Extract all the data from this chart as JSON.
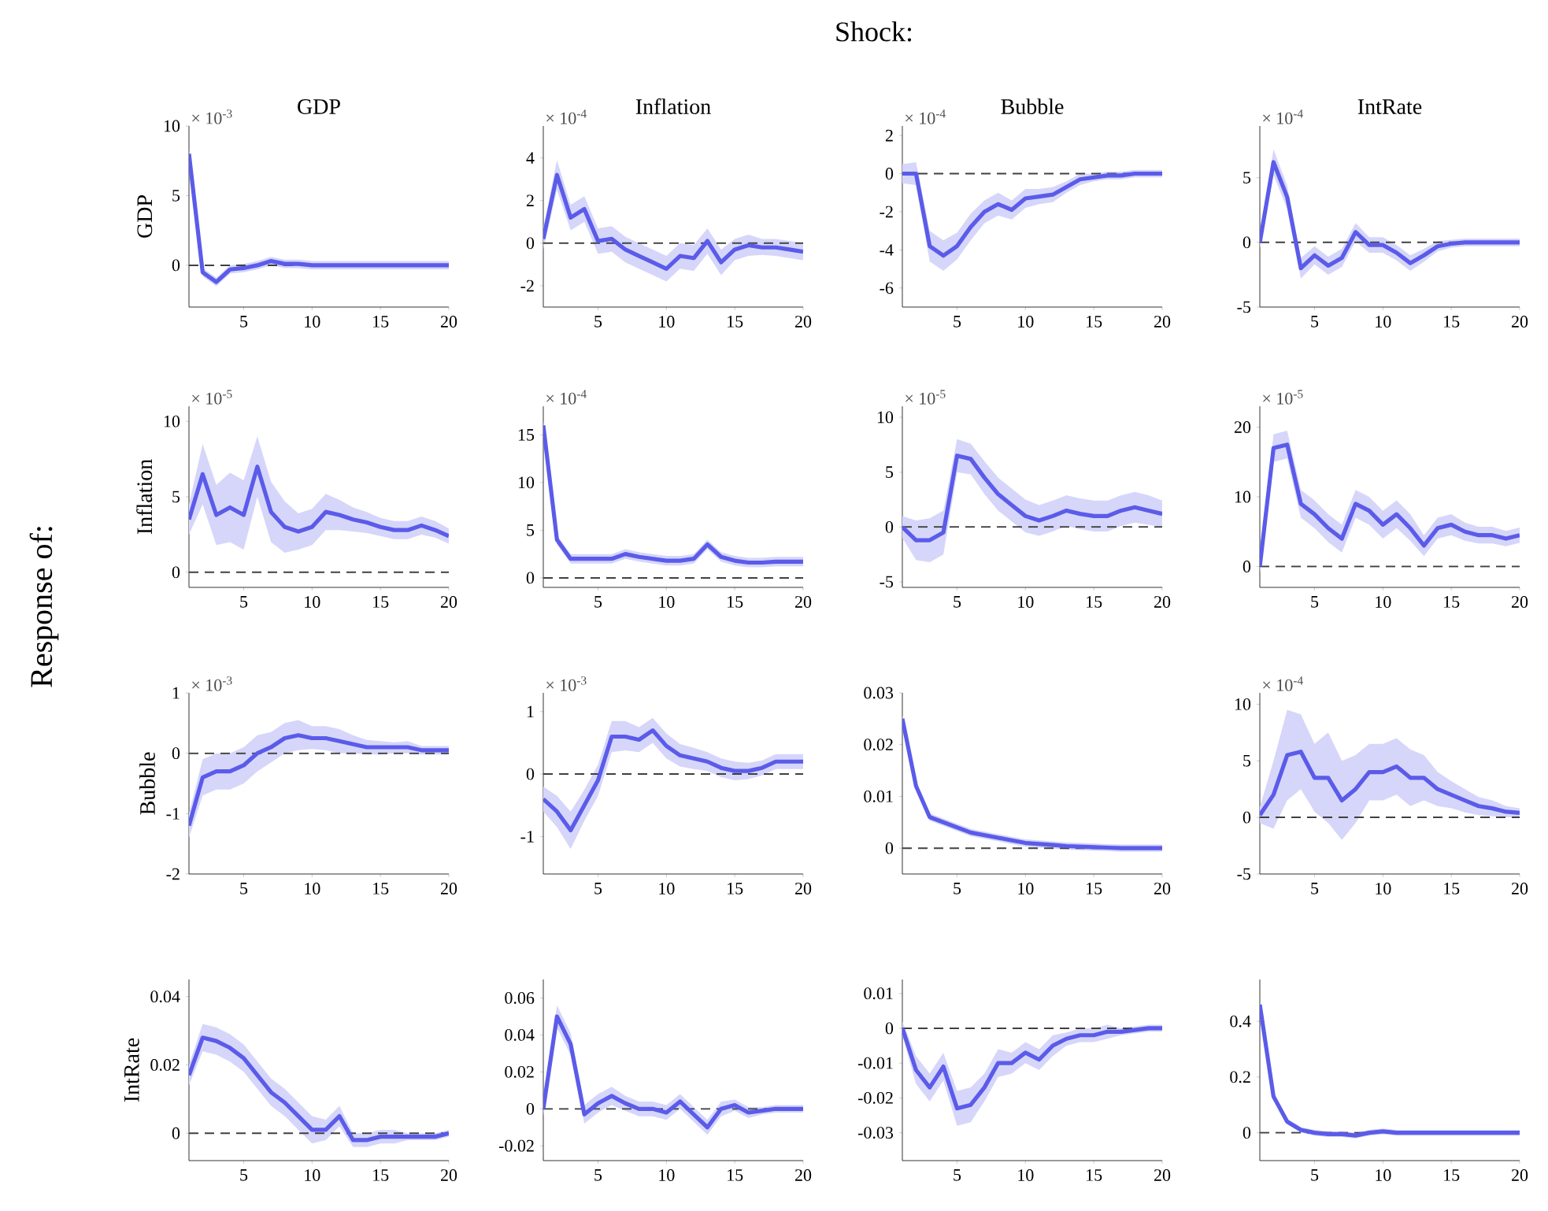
{
  "chart_data": [
    {
      "type": "line",
      "title": "GDP",
      "ylabel": "GDP",
      "annotations": [
        "Shock:",
        "Response of:",
        "× 10$^{-3}$"
      ],
      "x": [
        1,
        2,
        3,
        4,
        5,
        6,
        7,
        8,
        9,
        10,
        11,
        12,
        13,
        14,
        15,
        16,
        17,
        18,
        19,
        20
      ],
      "xlim": [
        1,
        20
      ],
      "xticks": [
        5,
        10,
        15,
        20
      ],
      "ylim": [
        -3,
        10
      ],
      "yticks": [
        0,
        5,
        10
      ],
      "ref_lines": [
        {
          "axis": "y",
          "value": 0
        }
      ],
      "series": [
        {
          "color": "#5b5bea",
          "values": [
            8,
            -0.5,
            -1.2,
            -0.3,
            -0.2,
            0,
            0.3,
            0.1,
            0.1,
            0,
            0,
            0,
            0,
            0,
            0,
            0,
            0,
            0,
            0,
            0
          ],
          "lower": [
            7.7,
            -0.8,
            -1.5,
            -0.6,
            -0.5,
            -0.3,
            0,
            -0.2,
            -0.2,
            -0.3,
            -0.3,
            -0.3,
            -0.3,
            -0.3,
            -0.3,
            -0.3,
            -0.3,
            -0.3,
            -0.3,
            -0.3
          ],
          "upper": [
            8.3,
            -0.2,
            -0.9,
            0,
            0.1,
            0.3,
            0.6,
            0.4,
            0.4,
            0.3,
            0.3,
            0.3,
            0.3,
            0.3,
            0.3,
            0.3,
            0.3,
            0.3,
            0.3,
            0.3
          ]
        }
      ]
    },
    {
      "type": "line",
      "title": "Inflation",
      "annotations": [
        "× 10$^{-4}$"
      ],
      "x": [
        1,
        2,
        3,
        4,
        5,
        6,
        7,
        8,
        9,
        10,
        11,
        12,
        13,
        14,
        15,
        16,
        17,
        18,
        19,
        20
      ],
      "xlim": [
        1,
        20
      ],
      "xticks": [
        5,
        10,
        15,
        20
      ],
      "ylim": [
        -3,
        5.5
      ],
      "yticks": [
        -2,
        0,
        2,
        4
      ],
      "ref_lines": [
        {
          "axis": "y",
          "value": 0
        }
      ],
      "series": [
        {
          "color": "#5b5bea",
          "values": [
            0.2,
            3.2,
            1.2,
            1.6,
            0.1,
            0.2,
            -0.3,
            -0.6,
            -0.9,
            -1.2,
            -0.6,
            -0.7,
            0.1,
            -0.9,
            -0.3,
            -0.1,
            -0.2,
            -0.2,
            -0.3,
            -0.4
          ],
          "lower": [
            -0.3,
            2.5,
            0.6,
            1,
            -0.5,
            -0.4,
            -0.9,
            -1.2,
            -1.5,
            -1.8,
            -1.2,
            -1.3,
            -0.5,
            -1.5,
            -0.8,
            -0.6,
            -0.55,
            -0.6,
            -0.7,
            -0.8
          ],
          "upper": [
            0.7,
            3.9,
            1.8,
            2.2,
            0.7,
            0.8,
            0.3,
            0,
            -0.3,
            -0.6,
            0,
            -0.1,
            0.7,
            -0.3,
            0.2,
            0.4,
            0.2,
            0.2,
            0.1,
            0
          ]
        }
      ]
    },
    {
      "type": "line",
      "title": "Bubble",
      "annotations": [
        "× 10$^{-4}$"
      ],
      "x": [
        1,
        2,
        3,
        4,
        5,
        6,
        7,
        8,
        9,
        10,
        11,
        12,
        13,
        14,
        15,
        16,
        17,
        18,
        19,
        20
      ],
      "xlim": [
        1,
        20
      ],
      "xticks": [
        5,
        10,
        15,
        20
      ],
      "ylim": [
        -7,
        2.5
      ],
      "yticks": [
        -6,
        -4,
        -2,
        0,
        2
      ],
      "ref_lines": [
        {
          "axis": "y",
          "value": 0
        }
      ],
      "series": [
        {
          "color": "#5b5bea",
          "values": [
            0,
            0,
            -3.8,
            -4.3,
            -3.8,
            -2.8,
            -2,
            -1.6,
            -1.9,
            -1.3,
            -1.2,
            -1.1,
            -0.7,
            -0.3,
            -0.2,
            -0.1,
            -0.1,
            0,
            0,
            0
          ],
          "lower": [
            -0.5,
            -0.6,
            -4.6,
            -5.1,
            -4.5,
            -3.5,
            -2.6,
            -2.2,
            -2.4,
            -1.8,
            -1.6,
            -1.5,
            -1,
            -0.6,
            -0.4,
            -0.3,
            -0.3,
            -0.2,
            -0.2,
            -0.2
          ],
          "upper": [
            0.5,
            0.6,
            -3,
            -3.5,
            -3.1,
            -2.1,
            -1.4,
            -1,
            -1.4,
            -0.8,
            -0.8,
            -0.7,
            -0.4,
            0,
            0,
            0.1,
            0.1,
            0.2,
            0.2,
            0.2
          ]
        }
      ]
    },
    {
      "type": "line",
      "title": "IntRate",
      "annotations": [
        "× 10$^{-4}$"
      ],
      "x": [
        1,
        2,
        3,
        4,
        5,
        6,
        7,
        8,
        9,
        10,
        11,
        12,
        13,
        14,
        15,
        16,
        17,
        18,
        19,
        20
      ],
      "xlim": [
        1,
        20
      ],
      "xticks": [
        5,
        10,
        15,
        20
      ],
      "ylim": [
        -5,
        9
      ],
      "yticks": [
        -5,
        0,
        5
      ],
      "ref_lines": [
        {
          "axis": "y",
          "value": 0
        }
      ],
      "series": [
        {
          "color": "#5b5bea",
          "values": [
            0,
            6.2,
            3.5,
            -2,
            -1,
            -1.8,
            -1.2,
            0.8,
            -0.2,
            -0.2,
            -0.8,
            -1.6,
            -1,
            -0.3,
            -0.1,
            0,
            0,
            0,
            0,
            0
          ],
          "lower": [
            -0.5,
            5.2,
            2.6,
            -2.8,
            -1.7,
            -2.5,
            -1.9,
            0.1,
            -0.8,
            -0.8,
            -1.4,
            -2.2,
            -1.5,
            -0.7,
            -0.4,
            -0.3,
            -0.3,
            -0.3,
            -0.3,
            -0.3
          ],
          "upper": [
            0.5,
            7.2,
            4.4,
            -1.2,
            -0.3,
            -1.1,
            -0.5,
            1.5,
            0.4,
            0.4,
            -0.2,
            -1,
            -0.5,
            0.1,
            0.2,
            0.3,
            0.3,
            0.3,
            0.3,
            0.3
          ]
        }
      ]
    },
    {
      "type": "line",
      "ylabel": "Inflation",
      "annotations": [
        "× 10$^{-5}$"
      ],
      "x": [
        1,
        2,
        3,
        4,
        5,
        6,
        7,
        8,
        9,
        10,
        11,
        12,
        13,
        14,
        15,
        16,
        17,
        18,
        19,
        20
      ],
      "xlim": [
        1,
        20
      ],
      "xticks": [
        5,
        10,
        15,
        20
      ],
      "ylim": [
        -1,
        11
      ],
      "yticks": [
        0,
        5,
        10
      ],
      "ref_lines": [
        {
          "axis": "y",
          "value": 0
        }
      ],
      "series": [
        {
          "color": "#5b5bea",
          "values": [
            3.5,
            6.5,
            3.8,
            4.3,
            3.8,
            7,
            4,
            3,
            2.7,
            3,
            4,
            3.8,
            3.5,
            3.3,
            3,
            2.8,
            2.8,
            3.1,
            2.8,
            2.4
          ],
          "lower": [
            2.5,
            4.5,
            1.8,
            2,
            1.5,
            5,
            2,
            1.3,
            1.5,
            1.8,
            2.8,
            2.8,
            2.7,
            2.6,
            2.4,
            2.2,
            2.2,
            2.5,
            2.3,
            1.9
          ],
          "upper": [
            4.5,
            8.5,
            5.8,
            6.6,
            6.1,
            9,
            6,
            4.7,
            3.9,
            4.2,
            5.2,
            4.8,
            4.3,
            4,
            3.6,
            3.4,
            3.4,
            3.7,
            3.4,
            2.9
          ]
        }
      ]
    },
    {
      "type": "line",
      "annotations": [
        "× 10$^{-4}$"
      ],
      "x": [
        1,
        2,
        3,
        4,
        5,
        6,
        7,
        8,
        9,
        10,
        11,
        12,
        13,
        14,
        15,
        16,
        17,
        18,
        19,
        20
      ],
      "xlim": [
        1,
        20
      ],
      "xticks": [
        5,
        10,
        15,
        20
      ],
      "ylim": [
        -1,
        18
      ],
      "yticks": [
        0,
        5,
        10,
        15
      ],
      "ref_lines": [
        {
          "axis": "y",
          "value": 0
        }
      ],
      "series": [
        {
          "color": "#5b5bea",
          "values": [
            16,
            4,
            2,
            2,
            2,
            2,
            2.5,
            2.2,
            2,
            1.8,
            1.8,
            2,
            3.5,
            2.2,
            1.8,
            1.6,
            1.6,
            1.7,
            1.7,
            1.7
          ],
          "lower": [
            15.5,
            3.5,
            1.5,
            1.5,
            1.5,
            1.5,
            2,
            1.7,
            1.5,
            1.3,
            1.3,
            1.5,
            3,
            1.7,
            1.3,
            1.1,
            1.1,
            1.2,
            1.2,
            1.2
          ],
          "upper": [
            16.5,
            4.5,
            2.5,
            2.5,
            2.5,
            2.5,
            3,
            2.7,
            2.5,
            2.3,
            2.3,
            2.5,
            4,
            2.7,
            2.3,
            2.1,
            2.1,
            2.2,
            2.2,
            2.2
          ]
        }
      ]
    },
    {
      "type": "line",
      "annotations": [
        "× 10$^{-5}$"
      ],
      "x": [
        1,
        2,
        3,
        4,
        5,
        6,
        7,
        8,
        9,
        10,
        11,
        12,
        13,
        14,
        15,
        16,
        17,
        18,
        19,
        20
      ],
      "xlim": [
        1,
        20
      ],
      "xticks": [
        5,
        10,
        15,
        20
      ],
      "ylim": [
        -5.5,
        11
      ],
      "yticks": [
        -5,
        0,
        5,
        10
      ],
      "ref_lines": [
        {
          "axis": "y",
          "value": 0
        }
      ],
      "series": [
        {
          "color": "#5b5bea",
          "values": [
            0,
            -1.2,
            -1.2,
            -0.5,
            6.5,
            6.2,
            4.5,
            3,
            2,
            1,
            0.6,
            1,
            1.5,
            1.2,
            1,
            1,
            1.5,
            1.8,
            1.5,
            1.2
          ],
          "lower": [
            -1,
            -3,
            -3.2,
            -2.5,
            5,
            4.8,
            3,
            1.5,
            0.5,
            -0.5,
            -0.8,
            -0.4,
            0.1,
            -0.2,
            -0.4,
            -0.4,
            0.1,
            0.4,
            0.2,
            0
          ],
          "upper": [
            1,
            0.6,
            0.8,
            1.5,
            8,
            7.6,
            6,
            4.5,
            3.5,
            2.5,
            2,
            2.4,
            2.9,
            2.6,
            2.4,
            2.4,
            2.9,
            3.2,
            2.9,
            2.4
          ]
        }
      ]
    },
    {
      "type": "line",
      "annotations": [
        "× 10$^{-5}$"
      ],
      "x": [
        1,
        2,
        3,
        4,
        5,
        6,
        7,
        8,
        9,
        10,
        11,
        12,
        13,
        14,
        15,
        16,
        17,
        18,
        19,
        20
      ],
      "xlim": [
        1,
        20
      ],
      "xticks": [
        5,
        10,
        15,
        20
      ],
      "ylim": [
        -3,
        23
      ],
      "yticks": [
        0,
        10,
        20
      ],
      "ref_lines": [
        {
          "axis": "y",
          "value": 0
        }
      ],
      "series": [
        {
          "color": "#5b5bea",
          "values": [
            0,
            17,
            17.5,
            9,
            7.5,
            5.5,
            4,
            9,
            8,
            6,
            7.5,
            5.5,
            3,
            5.5,
            6,
            5,
            4.5,
            4.5,
            4,
            4.5
          ],
          "lower": [
            -1,
            15,
            15.5,
            7,
            5.5,
            3.5,
            2,
            7,
            6,
            4,
            5.5,
            3.7,
            1.5,
            4,
            4.5,
            3.7,
            3.3,
            3.3,
            2.9,
            3.4
          ],
          "upper": [
            1,
            19,
            19.5,
            11,
            9.5,
            7.5,
            6,
            11,
            10,
            8,
            9.5,
            7.5,
            4.5,
            7,
            7.5,
            6.3,
            5.7,
            5.7,
            5.1,
            5.6
          ]
        }
      ]
    },
    {
      "type": "line",
      "ylabel": "Bubble",
      "annotations": [
        "× 10$^{-3}$"
      ],
      "x": [
        1,
        2,
        3,
        4,
        5,
        6,
        7,
        8,
        9,
        10,
        11,
        12,
        13,
        14,
        15,
        16,
        17,
        18,
        19,
        20
      ],
      "xlim": [
        1,
        20
      ],
      "xticks": [
        5,
        10,
        15,
        20
      ],
      "ylim": [
        -2,
        1
      ],
      "yticks": [
        -2,
        -1,
        0,
        1
      ],
      "ref_lines": [
        {
          "axis": "y",
          "value": 0
        }
      ],
      "series": [
        {
          "color": "#5b5bea",
          "values": [
            -1.2,
            -0.4,
            -0.3,
            -0.3,
            -0.2,
            0,
            0.1,
            0.25,
            0.3,
            0.25,
            0.25,
            0.2,
            0.15,
            0.1,
            0.1,
            0.1,
            0.1,
            0.05,
            0.05,
            0.05
          ],
          "lower": [
            -1.4,
            -0.7,
            -0.6,
            -0.6,
            -0.5,
            -0.3,
            -0.15,
            0,
            0.05,
            0.07,
            0.05,
            0,
            0,
            -0.02,
            -0.02,
            0,
            0,
            -0.02,
            -0.02,
            -0.02
          ],
          "upper": [
            -1,
            -0.1,
            0,
            0,
            0.1,
            0.3,
            0.35,
            0.5,
            0.55,
            0.45,
            0.45,
            0.4,
            0.3,
            0.22,
            0.2,
            0.18,
            0.2,
            0.12,
            0.12,
            0.12
          ]
        }
      ]
    },
    {
      "type": "line",
      "annotations": [
        "× 10$^{-3}$"
      ],
      "x": [
        1,
        2,
        3,
        4,
        5,
        6,
        7,
        8,
        9,
        10,
        11,
        12,
        13,
        14,
        15,
        16,
        17,
        18,
        19,
        20
      ],
      "xlim": [
        1,
        20
      ],
      "xticks": [
        5,
        10,
        15,
        20
      ],
      "ylim": [
        -1.6,
        1.3
      ],
      "yticks": [
        -1,
        0,
        1
      ],
      "ref_lines": [
        {
          "axis": "y",
          "value": 0
        }
      ],
      "series": [
        {
          "color": "#5b5bea",
          "values": [
            -0.4,
            -0.6,
            -0.9,
            -0.5,
            -0.1,
            0.6,
            0.6,
            0.55,
            0.7,
            0.45,
            0.3,
            0.25,
            0.2,
            0.1,
            0.05,
            0.05,
            0.1,
            0.2,
            0.2,
            0.2
          ],
          "lower": [
            -0.6,
            -0.85,
            -1.2,
            -0.75,
            -0.35,
            0.35,
            0.38,
            0.35,
            0.5,
            0.25,
            0.12,
            0.08,
            0.05,
            -0.05,
            -0.1,
            -0.08,
            -0.02,
            0.08,
            0.08,
            0.08
          ],
          "upper": [
            -0.2,
            -0.35,
            -0.6,
            -0.25,
            0.15,
            0.85,
            0.85,
            0.75,
            0.9,
            0.65,
            0.48,
            0.42,
            0.35,
            0.25,
            0.2,
            0.18,
            0.22,
            0.32,
            0.32,
            0.32
          ]
        }
      ]
    },
    {
      "type": "line",
      "x": [
        1,
        2,
        3,
        4,
        5,
        6,
        7,
        8,
        9,
        10,
        11,
        12,
        13,
        14,
        15,
        16,
        17,
        18,
        19,
        20
      ],
      "xlim": [
        1,
        20
      ],
      "xticks": [
        5,
        10,
        15,
        20
      ],
      "ylim": [
        -0.005,
        0.03
      ],
      "yticks": [
        0,
        0.01,
        0.02,
        0.03
      ],
      "ref_lines": [
        {
          "axis": "y",
          "value": 0
        }
      ],
      "series": [
        {
          "color": "#5b5bea",
          "values": [
            0.025,
            0.012,
            0.006,
            0.005,
            0.004,
            0.003,
            0.0025,
            0.002,
            0.0015,
            0.001,
            0.0008,
            0.0006,
            0.0004,
            0.0003,
            0.0002,
            0.0001,
            0,
            0,
            0,
            0
          ],
          "lower": [
            0.0243,
            0.0113,
            0.0053,
            0.0043,
            0.0033,
            0.0023,
            0.0018,
            0.0013,
            0.0008,
            0.0003,
            0.0001,
            -0.0001,
            -0.0003,
            -0.0004,
            -0.0005,
            -0.0006,
            -0.0007,
            -0.0007,
            -0.0007,
            -0.0007
          ],
          "upper": [
            0.0257,
            0.0127,
            0.0067,
            0.0057,
            0.0047,
            0.0037,
            0.0032,
            0.0027,
            0.0022,
            0.0017,
            0.0015,
            0.0013,
            0.0011,
            0.001,
            0.0009,
            0.0008,
            0.0007,
            0.0007,
            0.0007,
            0.0007
          ]
        }
      ]
    },
    {
      "type": "line",
      "annotations": [
        "× 10$^{-4}$"
      ],
      "x": [
        1,
        2,
        3,
        4,
        5,
        6,
        7,
        8,
        9,
        10,
        11,
        12,
        13,
        14,
        15,
        16,
        17,
        18,
        19,
        20
      ],
      "xlim": [
        1,
        20
      ],
      "xticks": [
        5,
        10,
        15,
        20
      ],
      "ylim": [
        -5,
        11
      ],
      "yticks": [
        -5,
        0,
        5,
        10
      ],
      "ref_lines": [
        {
          "axis": "y",
          "value": 0
        }
      ],
      "series": [
        {
          "color": "#5b5bea",
          "values": [
            0.2,
            2,
            5.5,
            5.8,
            3.5,
            3.5,
            1.5,
            2.5,
            4,
            4,
            4.5,
            3.5,
            3.5,
            2.5,
            2,
            1.5,
            1,
            0.8,
            0.5,
            0.4
          ],
          "lower": [
            -0.5,
            -1,
            1.5,
            2.5,
            0.5,
            -0.5,
            -2,
            -0.5,
            1.5,
            1.5,
            2,
            1,
            1.5,
            1,
            0.8,
            0.45,
            0.2,
            0.1,
            0,
            0
          ],
          "upper": [
            0.9,
            5,
            9.5,
            9.1,
            6.5,
            7.5,
            5,
            5.5,
            6.5,
            6.5,
            7,
            6,
            5.5,
            4,
            3.2,
            2.5,
            1.8,
            1.5,
            1,
            0.8
          ]
        }
      ]
    },
    {
      "type": "line",
      "ylabel": "IntRate",
      "x": [
        1,
        2,
        3,
        4,
        5,
        6,
        7,
        8,
        9,
        10,
        11,
        12,
        13,
        14,
        15,
        16,
        17,
        18,
        19,
        20
      ],
      "xlim": [
        1,
        20
      ],
      "xticks": [
        5,
        10,
        15,
        20
      ],
      "ylim": [
        -0.008,
        0.045
      ],
      "yticks": [
        0,
        0.02,
        0.04
      ],
      "ref_lines": [
        {
          "axis": "y",
          "value": 0
        }
      ],
      "series": [
        {
          "color": "#5b5bea",
          "values": [
            0.017,
            0.028,
            0.027,
            0.025,
            0.022,
            0.017,
            0.012,
            0.009,
            0.005,
            0.001,
            0.001,
            0.005,
            -0.002,
            -0.002,
            -0.001,
            -0.001,
            -0.001,
            -0.001,
            -0.001,
            0
          ],
          "lower": [
            0.014,
            0.024,
            0.023,
            0.021,
            0.018,
            0.013,
            0.008,
            0.005,
            0.001,
            -0.003,
            -0.002,
            0.002,
            -0.004,
            -0.004,
            -0.003,
            -0.003,
            -0.002,
            -0.002,
            -0.002,
            -0.001
          ],
          "upper": [
            0.02,
            0.032,
            0.031,
            0.029,
            0.026,
            0.021,
            0.016,
            0.013,
            0.009,
            0.005,
            0.004,
            0.008,
            0,
            0,
            0.001,
            0.001,
            0,
            0,
            0,
            0.001
          ]
        }
      ]
    },
    {
      "type": "line",
      "x": [
        1,
        2,
        3,
        4,
        5,
        6,
        7,
        8,
        9,
        10,
        11,
        12,
        13,
        14,
        15,
        16,
        17,
        18,
        19,
        20
      ],
      "xlim": [
        1,
        20
      ],
      "xticks": [
        5,
        10,
        15,
        20
      ],
      "ylim": [
        -0.028,
        0.07
      ],
      "yticks": [
        -0.02,
        0,
        0.02,
        0.04,
        0.06
      ],
      "ref_lines": [
        {
          "axis": "y",
          "value": 0
        }
      ],
      "series": [
        {
          "color": "#5b5bea",
          "values": [
            0,
            0.05,
            0.035,
            -0.003,
            0.003,
            0.007,
            0.003,
            0,
            0,
            -0.002,
            0.004,
            -0.003,
            -0.01,
            0,
            0.002,
            -0.002,
            -0.001,
            0,
            0,
            0
          ],
          "lower": [
            -0.004,
            0.044,
            0.029,
            -0.008,
            -0.002,
            0.002,
            -0.001,
            -0.004,
            -0.004,
            -0.006,
            0,
            -0.007,
            -0.014,
            -0.004,
            -0.001,
            -0.005,
            -0.003,
            -0.002,
            -0.002,
            -0.002
          ],
          "upper": [
            0.004,
            0.056,
            0.041,
            0.002,
            0.008,
            0.012,
            0.007,
            0.004,
            0.004,
            0.002,
            0.008,
            0.001,
            -0.006,
            0.004,
            0.005,
            0.001,
            0.001,
            0.002,
            0.002,
            0.002
          ]
        }
      ]
    },
    {
      "type": "line",
      "x": [
        1,
        2,
        3,
        4,
        5,
        6,
        7,
        8,
        9,
        10,
        11,
        12,
        13,
        14,
        15,
        16,
        17,
        18,
        19,
        20
      ],
      "xlim": [
        1,
        20
      ],
      "xticks": [
        5,
        10,
        15,
        20
      ],
      "ylim": [
        -0.038,
        0.014
      ],
      "yticks": [
        -0.03,
        -0.02,
        -0.01,
        0,
        0.01
      ],
      "ref_lines": [
        {
          "axis": "y",
          "value": 0
        }
      ],
      "series": [
        {
          "color": "#5b5bea",
          "values": [
            0,
            -0.012,
            -0.017,
            -0.011,
            -0.023,
            -0.022,
            -0.017,
            -0.01,
            -0.01,
            -0.007,
            -0.009,
            -0.005,
            -0.003,
            -0.002,
            -0.002,
            -0.001,
            -0.001,
            -0.0005,
            0,
            0
          ],
          "lower": [
            -0.002,
            -0.016,
            -0.021,
            -0.015,
            -0.028,
            -0.027,
            -0.021,
            -0.014,
            -0.013,
            -0.01,
            -0.012,
            -0.008,
            -0.005,
            -0.004,
            -0.004,
            -0.003,
            -0.002,
            -0.0015,
            -0.001,
            -0.001
          ],
          "upper": [
            0.002,
            -0.008,
            -0.013,
            -0.007,
            -0.018,
            -0.017,
            -0.013,
            -0.006,
            -0.007,
            -0.004,
            -0.006,
            -0.002,
            -0.0012,
            0,
            0,
            0.001,
            0,
            0.0005,
            0.001,
            0.001
          ]
        }
      ]
    },
    {
      "type": "line",
      "x": [
        1,
        2,
        3,
        4,
        5,
        6,
        7,
        8,
        9,
        10,
        11,
        12,
        13,
        14,
        15,
        16,
        17,
        18,
        19,
        20
      ],
      "xlim": [
        1,
        20
      ],
      "xticks": [
        5,
        10,
        15,
        20
      ],
      "ylim": [
        -0.1,
        0.55
      ],
      "yticks": [
        0,
        0.2,
        0.4
      ],
      "ref_lines": [
        {
          "axis": "y",
          "value": 0
        }
      ],
      "series": [
        {
          "color": "#5b5bea",
          "values": [
            0.46,
            0.13,
            0.04,
            0.01,
            0,
            -0.005,
            -0.005,
            -0.01,
            0,
            0.005,
            0,
            0,
            0,
            0,
            0,
            0,
            0,
            0,
            0,
            0
          ],
          "lower": [
            0.45,
            0.12,
            0.03,
            0,
            -0.01,
            -0.015,
            -0.015,
            -0.02,
            -0.01,
            -0.005,
            -0.01,
            -0.01,
            -0.01,
            -0.01,
            -0.01,
            -0.01,
            -0.01,
            -0.01,
            -0.01,
            -0.01
          ],
          "upper": [
            0.47,
            0.14,
            0.05,
            0.02,
            0.01,
            0.005,
            0.005,
            0,
            0.01,
            0.015,
            0.01,
            0.01,
            0.01,
            0.01,
            0.01,
            0.01,
            0.01,
            0.01,
            0.01,
            0.01
          ]
        }
      ]
    }
  ]
}
